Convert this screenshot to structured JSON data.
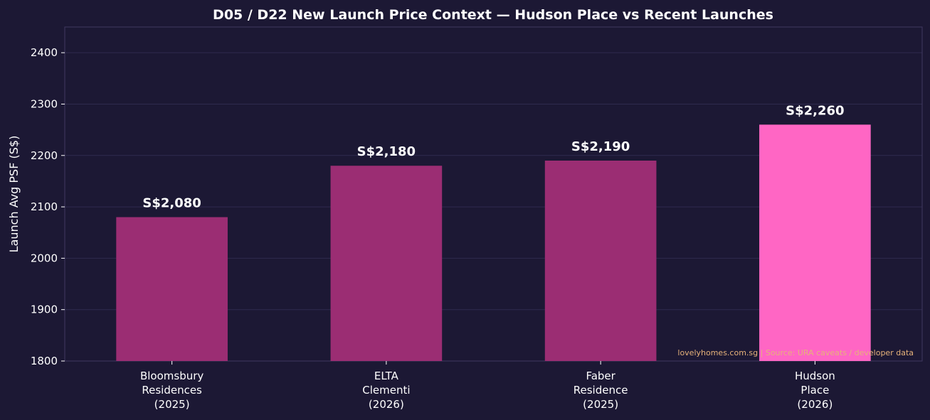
{
  "colors": {
    "background": "#1c1834",
    "plot_background": "#1c1834",
    "grid": "#2f2a4e",
    "axis": "#3f3960",
    "bar": "#9b2d73",
    "highlight_bar": "#ff66c4",
    "source_text": "#e6b27a"
  },
  "chart_data": {
    "type": "bar",
    "title": "D05 / D22 New Launch Price Context — Hudson Place vs Recent Launches",
    "xlabel": "",
    "ylabel": "Launch Avg PSF (S$)",
    "ylim": [
      1800,
      2450
    ],
    "yticks": [
      1800,
      1900,
      2000,
      2100,
      2200,
      2300,
      2400
    ],
    "grid": true,
    "categories": [
      [
        "Bloomsbury",
        "Residences",
        "(2025)"
      ],
      [
        "ELTA",
        "Clementi",
        "(2026)"
      ],
      [
        "Faber",
        "Residence",
        "(2025)"
      ],
      [
        "Hudson",
        "Place",
        "(2026)"
      ]
    ],
    "values": [
      2080,
      2180,
      2190,
      2260
    ],
    "data_labels": [
      "S$2,080",
      "S$2,180",
      "S$2,190",
      "S$2,260"
    ],
    "highlight_index": 3,
    "annotation": "lovelyhomes.com.sg | Source: URA caveats / developer data"
  }
}
